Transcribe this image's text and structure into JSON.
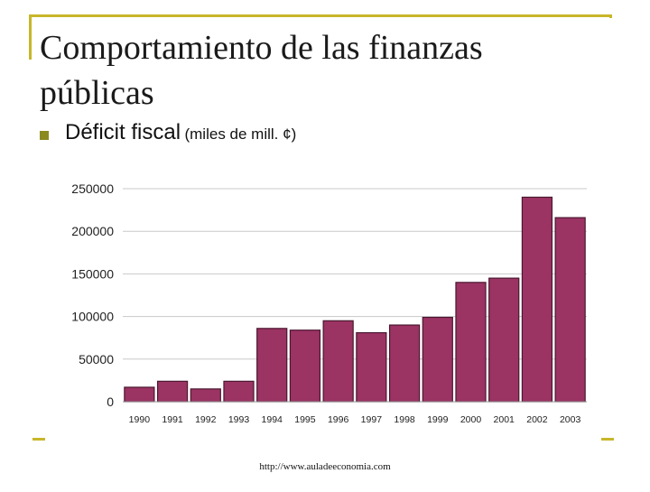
{
  "slide": {
    "title": "Comportamiento de las finanzas públicas",
    "bullet_main": "Déficit fiscal",
    "bullet_sub": "(miles de mill. ¢)",
    "source": "http://www.auladeeconomia.com"
  },
  "colors": {
    "bar": "#9b3363",
    "bar_stroke": "#4a1830",
    "accent": "#c8b62a",
    "grid": "#c8c8c8"
  },
  "chart_data": {
    "type": "bar",
    "title": "",
    "xlabel": "",
    "ylabel": "",
    "categories": [
      "1990",
      "1991",
      "1992",
      "1993",
      "1994",
      "1995",
      "1996",
      "1997",
      "1998",
      "1999",
      "2000",
      "2001",
      "2002",
      "2003"
    ],
    "values": [
      17000,
      24000,
      15000,
      24000,
      86000,
      84000,
      95000,
      81000,
      90000,
      99000,
      140000,
      145000,
      240000,
      216000
    ],
    "ylim": [
      0,
      250000
    ],
    "yticks": [
      0,
      50000,
      100000,
      150000,
      200000,
      250000
    ],
    "grid": true
  }
}
